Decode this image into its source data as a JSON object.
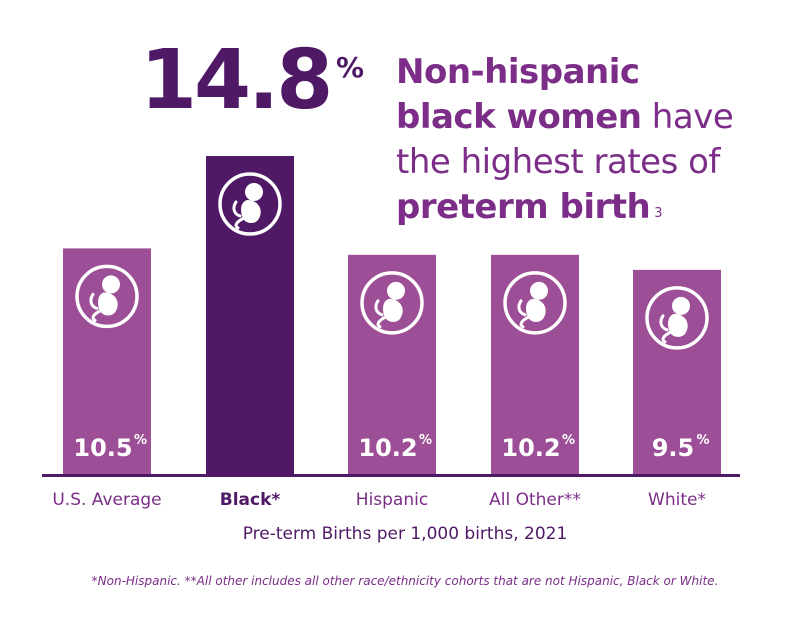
{
  "headline": {
    "number": "14.8",
    "percent_sign": "%",
    "line1_bold": "Non-hispanic",
    "line2_bold": "black women",
    "line2_rest": " have",
    "line3": "the highest rates of",
    "line4_bold": "preterm birth",
    "footnote_ref": "3"
  },
  "colors": {
    "bar": "#9c4f96",
    "highlight_bar": "#4f1966",
    "baseline": "#4f1966",
    "text_purple": "#7b2d88",
    "icon": "#ffffff"
  },
  "chart_data": {
    "type": "bar",
    "categories": [
      "U.S. Average",
      "Black*",
      "Hispanic",
      "All Other**",
      "White*"
    ],
    "values": [
      10.5,
      14.8,
      10.2,
      10.2,
      9.5
    ],
    "value_labels": [
      "10.5",
      "",
      "10.2",
      "10.2",
      "9.5"
    ],
    "value_suffix": "%",
    "highlight_index": 1,
    "title": "",
    "xlabel": "Pre-term Births per 1,000 births, 2021",
    "ylabel": "",
    "ylim": [
      0,
      14.8
    ],
    "grid": false,
    "icon": "fetus-icon"
  },
  "footnote": "*Non-Hispanic. **All other includes all other race/ethnicity cohorts that are not Hispanic, Black or White."
}
